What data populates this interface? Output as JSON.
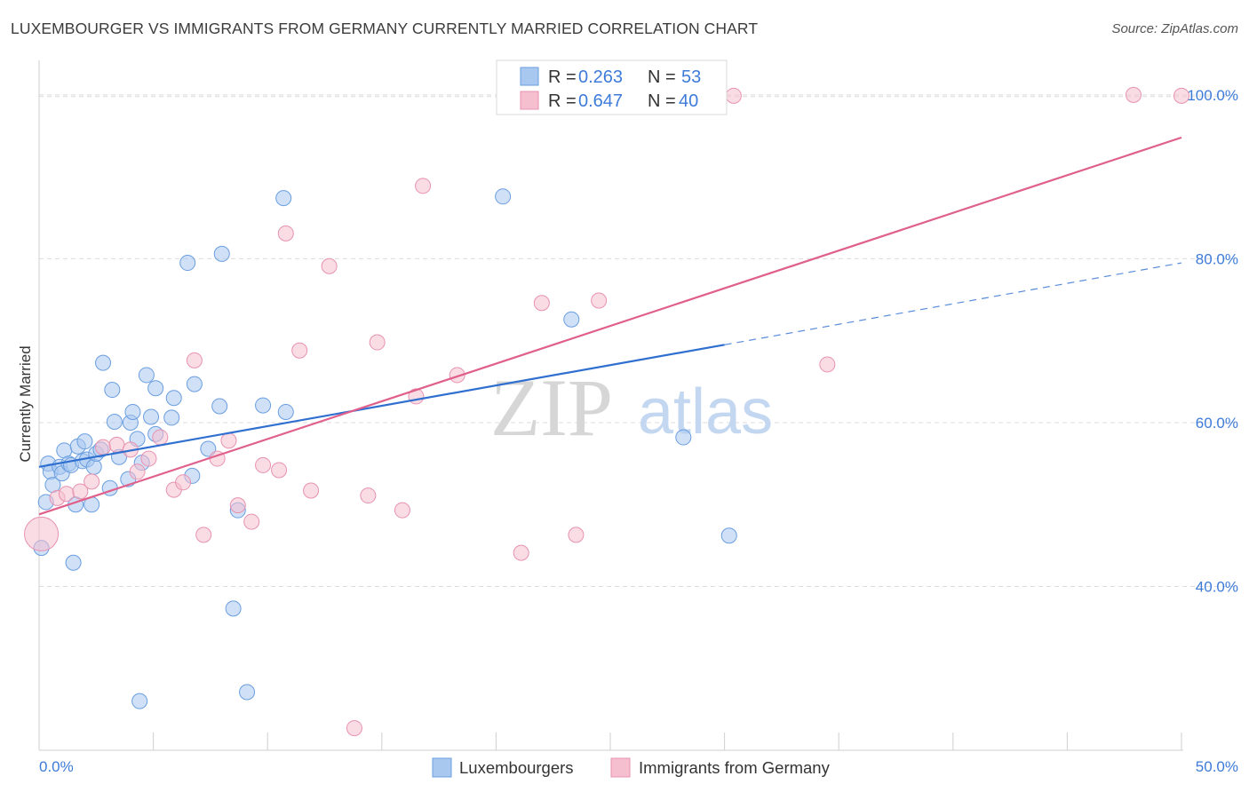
{
  "title": "LUXEMBOURGER VS IMMIGRANTS FROM GERMANY CURRENTLY MARRIED CORRELATION CHART",
  "source": "Source: ZipAtlas.com",
  "watermark": {
    "zip": "ZIP",
    "atlas": "atlas"
  },
  "legend_top": [
    {
      "r_label": "R =",
      "r_value": "0.263",
      "n_label": "N =",
      "n_value": "53"
    },
    {
      "r_label": "R =",
      "r_value": "0.647",
      "n_label": "N =",
      "n_value": "40"
    }
  ],
  "chart_data": {
    "type": "scatter",
    "title": "LUXEMBOURGER VS IMMIGRANTS FROM GERMANY CURRENTLY MARRIED CORRELATION CHART",
    "xlabel": "",
    "ylabel": "Currently Married",
    "xlim": [
      0,
      50
    ],
    "ylim": [
      20,
      104
    ],
    "x_tick_labels": [
      {
        "value": 0,
        "label": "0.0%"
      },
      {
        "value": 50,
        "label": "50.0%"
      }
    ],
    "y_tick_labels": [
      {
        "value": 40,
        "label": "40.0%"
      },
      {
        "value": 60,
        "label": "60.0%"
      },
      {
        "value": 80,
        "label": "80.0%"
      },
      {
        "value": 100,
        "label": "100.0%"
      }
    ],
    "grid": true,
    "legend_position": "bottom-center",
    "colors": {
      "Luxembourgers": {
        "fill": "#a9c8f0",
        "stroke": "#6a9ee0",
        "line": "#2f6fd0"
      },
      "Immigrants from Germany": {
        "fill": "#f6bfd0",
        "stroke": "#e792b0",
        "line": "#e0608c"
      }
    },
    "series": [
      {
        "name": "Luxembourgers",
        "r": 0.263,
        "n": 53,
        "trend": {
          "x0": 0,
          "y0": 54.6,
          "x1": 30,
          "y1": 69.5,
          "dashed_to_x": 50,
          "dashed_to_y": 79.5
        },
        "points": [
          [
            0.1,
            44.7
          ],
          [
            0.3,
            50.3
          ],
          [
            0.4,
            55.0
          ],
          [
            0.5,
            54.0
          ],
          [
            0.6,
            52.4
          ],
          [
            0.9,
            54.6
          ],
          [
            1.0,
            53.8
          ],
          [
            1.1,
            56.6
          ],
          [
            1.3,
            55.0
          ],
          [
            1.4,
            54.8
          ],
          [
            1.5,
            42.9
          ],
          [
            1.6,
            50.0
          ],
          [
            1.7,
            57.1
          ],
          [
            1.9,
            55.3
          ],
          [
            2.0,
            57.7
          ],
          [
            2.1,
            55.5
          ],
          [
            2.3,
            50.0
          ],
          [
            2.4,
            54.6
          ],
          [
            2.5,
            56.2
          ],
          [
            2.7,
            56.7
          ],
          [
            2.8,
            67.3
          ],
          [
            3.1,
            52.0
          ],
          [
            3.2,
            64.0
          ],
          [
            3.3,
            60.1
          ],
          [
            3.5,
            55.8
          ],
          [
            3.9,
            53.1
          ],
          [
            4.0,
            60.0
          ],
          [
            4.1,
            61.3
          ],
          [
            4.3,
            58.0
          ],
          [
            4.4,
            26.0
          ],
          [
            4.5,
            55.1
          ],
          [
            4.7,
            65.8
          ],
          [
            4.9,
            60.7
          ],
          [
            5.1,
            58.6
          ],
          [
            5.1,
            64.2
          ],
          [
            5.8,
            60.6
          ],
          [
            5.9,
            63.0
          ],
          [
            6.5,
            79.5
          ],
          [
            6.7,
            53.5
          ],
          [
            6.8,
            64.7
          ],
          [
            7.4,
            56.8
          ],
          [
            7.9,
            62.0
          ],
          [
            8.0,
            80.6
          ],
          [
            8.5,
            37.3
          ],
          [
            8.7,
            49.3
          ],
          [
            9.1,
            27.1
          ],
          [
            9.8,
            62.1
          ],
          [
            10.7,
            87.4
          ],
          [
            10.8,
            61.3
          ],
          [
            20.3,
            87.6
          ],
          [
            23.3,
            72.6
          ],
          [
            28.2,
            58.2
          ],
          [
            30.2,
            46.2
          ]
        ]
      },
      {
        "name": "Immigrants from Germany",
        "r": 0.647,
        "n": 40,
        "trend": {
          "x0": 0,
          "y0": 48.8,
          "x1": 50,
          "y1": 94.8
        },
        "points": [
          [
            0.1,
            46.4
          ],
          [
            0.8,
            50.8
          ],
          [
            1.2,
            51.3
          ],
          [
            1.8,
            51.6
          ],
          [
            2.3,
            52.8
          ],
          [
            2.8,
            57.0
          ],
          [
            3.4,
            57.3
          ],
          [
            4.0,
            56.7
          ],
          [
            4.3,
            54.0
          ],
          [
            4.8,
            55.6
          ],
          [
            5.3,
            58.2
          ],
          [
            5.9,
            51.8
          ],
          [
            6.3,
            52.7
          ],
          [
            6.8,
            67.6
          ],
          [
            7.2,
            46.3
          ],
          [
            7.8,
            55.6
          ],
          [
            8.3,
            57.8
          ],
          [
            8.7,
            49.9
          ],
          [
            9.3,
            47.9
          ],
          [
            9.8,
            54.8
          ],
          [
            10.5,
            54.2
          ],
          [
            10.8,
            83.1
          ],
          [
            11.4,
            68.8
          ],
          [
            11.9,
            51.7
          ],
          [
            12.7,
            79.1
          ],
          [
            13.8,
            22.7
          ],
          [
            14.4,
            51.1
          ],
          [
            14.8,
            69.8
          ],
          [
            15.9,
            49.3
          ],
          [
            16.5,
            63.2
          ],
          [
            16.8,
            88.9
          ],
          [
            18.3,
            65.8
          ],
          [
            21.1,
            44.1
          ],
          [
            22.0,
            74.6
          ],
          [
            23.5,
            46.3
          ],
          [
            24.5,
            74.9
          ],
          [
            30.4,
            99.9
          ],
          [
            34.5,
            67.1
          ],
          [
            47.9,
            100.0
          ],
          [
            50.0,
            99.9
          ]
        ]
      }
    ]
  },
  "bottom_legend": [
    "Luxembourgers",
    "Immigrants from Germany"
  ]
}
